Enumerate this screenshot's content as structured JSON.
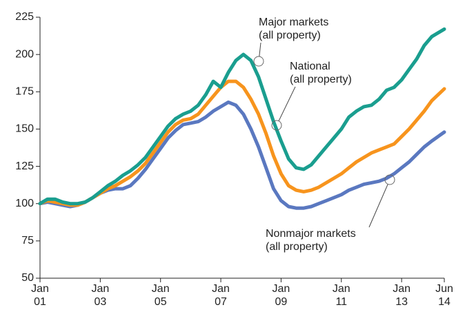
{
  "chart_data": {
    "type": "line",
    "x": [
      "2001-01",
      "2001-04",
      "2001-07",
      "2001-10",
      "2002-01",
      "2002-04",
      "2002-07",
      "2002-10",
      "2003-01",
      "2003-04",
      "2003-07",
      "2003-10",
      "2004-01",
      "2004-04",
      "2004-07",
      "2004-10",
      "2005-01",
      "2005-04",
      "2005-07",
      "2005-10",
      "2006-01",
      "2006-04",
      "2006-07",
      "2006-10",
      "2007-01",
      "2007-04",
      "2007-07",
      "2007-10",
      "2008-01",
      "2008-04",
      "2008-07",
      "2008-10",
      "2009-01",
      "2009-04",
      "2009-07",
      "2009-10",
      "2010-01",
      "2010-04",
      "2010-07",
      "2010-10",
      "2011-01",
      "2011-04",
      "2011-07",
      "2011-10",
      "2012-01",
      "2012-04",
      "2012-07",
      "2012-10",
      "2013-01",
      "2013-04",
      "2013-07",
      "2013-10",
      "2014-01",
      "2014-06"
    ],
    "series": [
      {
        "name": "Major markets (all property)",
        "color": "#1a9e8f",
        "values": [
          100,
          103,
          103,
          101,
          100,
          100,
          101,
          104,
          108,
          112,
          115,
          119,
          122,
          126,
          131,
          138,
          145,
          152,
          157,
          160,
          162,
          166,
          173,
          182,
          178,
          188,
          196,
          200,
          196,
          185,
          170,
          155,
          142,
          130,
          124,
          123,
          126,
          132,
          138,
          144,
          150,
          158,
          162,
          165,
          166,
          170,
          176,
          178,
          183,
          190,
          197,
          206,
          212,
          217
        ]
      },
      {
        "name": "National (all property)",
        "color": "#f7941d",
        "values": [
          100,
          102,
          101,
          100,
          99,
          99,
          101,
          104,
          107,
          110,
          112,
          115,
          118,
          122,
          127,
          134,
          141,
          148,
          153,
          156,
          157,
          160,
          166,
          172,
          178,
          182,
          182,
          178,
          170,
          160,
          147,
          132,
          120,
          112,
          109,
          108,
          109,
          111,
          114,
          117,
          120,
          124,
          128,
          131,
          134,
          136,
          138,
          140,
          145,
          150,
          156,
          162,
          169,
          177
        ]
      },
      {
        "name": "Nonmajor markets (all property)",
        "color": "#5a78c0",
        "values": [
          100,
          101,
          100,
          99,
          98,
          99,
          101,
          104,
          107,
          109,
          110,
          110,
          112,
          117,
          123,
          130,
          137,
          144,
          149,
          153,
          154,
          155,
          158,
          162,
          165,
          168,
          166,
          160,
          150,
          138,
          124,
          110,
          102,
          98,
          97,
          97,
          98,
          100,
          102,
          104,
          106,
          109,
          111,
          113,
          114,
          115,
          117,
          120,
          124,
          128,
          133,
          138,
          142,
          148
        ]
      }
    ],
    "annotations": [
      {
        "lines": [
          "Major markets",
          "(all property)"
        ]
      },
      {
        "lines": [
          "National",
          "(all property)"
        ]
      },
      {
        "lines": [
          "Nonmajor markets",
          "(all property)"
        ]
      }
    ],
    "xlim": [
      "2001-01",
      "2014-06"
    ],
    "xticks": [
      {
        "value": "2001-01",
        "label": [
          "Jan",
          "01"
        ]
      },
      {
        "value": "2003-01",
        "label": [
          "Jan",
          "03"
        ]
      },
      {
        "value": "2005-01",
        "label": [
          "Jan",
          "05"
        ]
      },
      {
        "value": "2007-01",
        "label": [
          "Jan",
          "07"
        ]
      },
      {
        "value": "2009-01",
        "label": [
          "Jan",
          "09"
        ]
      },
      {
        "value": "2011-01",
        "label": [
          "Jan",
          "11"
        ]
      },
      {
        "value": "2013-01",
        "label": [
          "Jan",
          "13"
        ]
      },
      {
        "value": "2014-06",
        "label": [
          "Jun",
          "14"
        ]
      }
    ],
    "ylim": [
      50,
      225
    ],
    "yticks": [
      50,
      75,
      100,
      125,
      150,
      175,
      200,
      225
    ]
  }
}
